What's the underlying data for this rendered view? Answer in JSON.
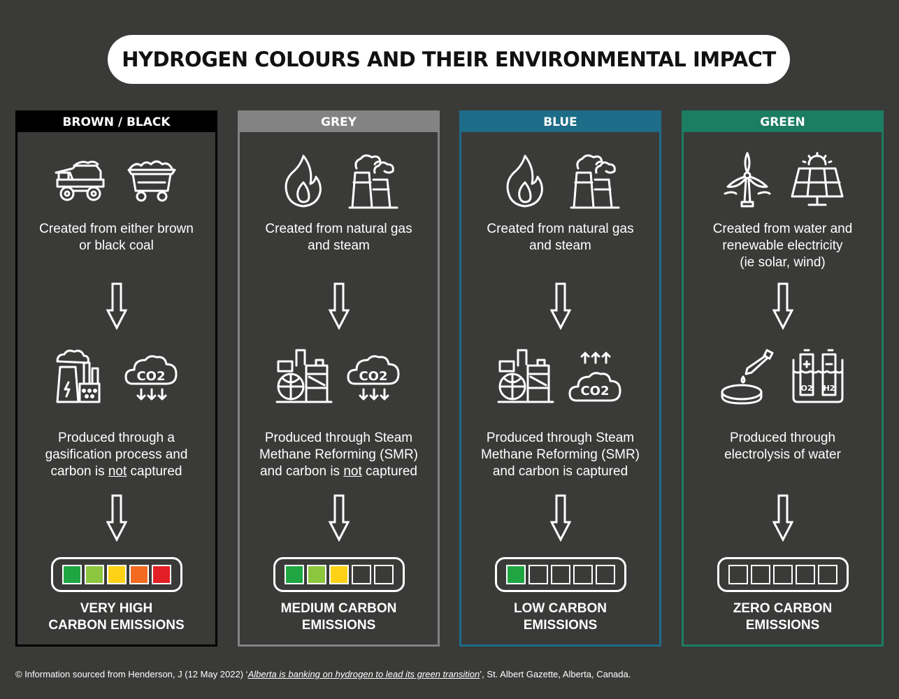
{
  "title": "HYDROGEN COLOURS AND THEIR ENVIRONMENTAL IMPACT",
  "colors": {
    "brown_black": "#000000",
    "grey": "#838383",
    "blue": "#1d6c88",
    "green": "#1b7d62",
    "meter_green": "#1fa643",
    "meter_lightgreen": "#8cc63f",
    "meter_yellow": "#fcd116",
    "meter_orange": "#f26b21",
    "meter_red": "#e31e24"
  },
  "columns": [
    {
      "header": "BROWN / BLACK",
      "icons_top": [
        "dump-truck-icon",
        "coal-cart-icon"
      ],
      "source_lines": [
        "Created from either brown",
        "or black coal"
      ],
      "icons_mid": [
        "power-plant-icon",
        "co2-cloud-down-icon"
      ],
      "process_lines": [
        "Produced through a",
        "gasification process and"
      ],
      "process_last_pre": "carbon is ",
      "process_last_em": "not",
      "process_last_post": " captured",
      "meter": [
        "green",
        "lightgreen",
        "yellow",
        "orange",
        "red"
      ],
      "meter_level": "5 of 5",
      "result_lines": [
        "VERY HIGH",
        "CARBON EMISSIONS"
      ]
    },
    {
      "header": "GREY",
      "icons_top": [
        "flame-icon",
        "factory-icon"
      ],
      "source_lines": [
        "Created from natural gas",
        "and steam"
      ],
      "icons_mid": [
        "refinery-icon",
        "co2-cloud-down-icon"
      ],
      "process_lines": [
        "Produced through Steam",
        "Methane Reforming (SMR)"
      ],
      "process_last_pre": "and carbon is ",
      "process_last_em": "not",
      "process_last_post": " captured",
      "meter": [
        "green",
        "lightgreen",
        "yellow",
        "empty",
        "empty"
      ],
      "meter_level": "3 of 5",
      "result_lines": [
        "MEDIUM CARBON",
        "EMISSIONS"
      ]
    },
    {
      "header": "BLUE",
      "icons_top": [
        "flame-icon",
        "factory-icon"
      ],
      "source_lines": [
        "Created from natural gas",
        "and steam"
      ],
      "icons_mid": [
        "refinery-icon",
        "co2-cloud-up-icon"
      ],
      "process_lines": [
        "Produced through Steam",
        "Methane Reforming (SMR)"
      ],
      "process_last_pre": "and carbon is captured",
      "process_last_em": "",
      "process_last_post": "",
      "meter": [
        "green",
        "empty",
        "empty",
        "empty",
        "empty"
      ],
      "meter_level": "1 of 5",
      "result_lines": [
        "LOW CARBON",
        "EMISSIONS"
      ]
    },
    {
      "header": "GREEN",
      "icons_top": [
        "wind-turbine-icon",
        "solar-panel-icon"
      ],
      "source_lines": [
        "Created from water and",
        "renewable electricity",
        "(ie solar, wind)"
      ],
      "icons_mid": [
        "petri-dish-dropper-icon",
        "electrolysis-tank-icon"
      ],
      "process_lines": [
        "Produced through",
        "electrolysis of water"
      ],
      "process_last_pre": "",
      "process_last_em": "",
      "process_last_post": "",
      "meter": [
        "empty",
        "empty",
        "empty",
        "empty",
        "empty"
      ],
      "meter_level": "0 of 5",
      "result_lines": [
        "ZERO CARBON",
        "EMISSIONS"
      ]
    }
  ],
  "footer": {
    "prefix": "© Information sourced from Henderson, J (12 May 2022) ‘",
    "link": "Alberta is banking on hydrogen to lead its green transition",
    "suffix": "’, St. Albert Gazette, Alberta, Canada."
  }
}
